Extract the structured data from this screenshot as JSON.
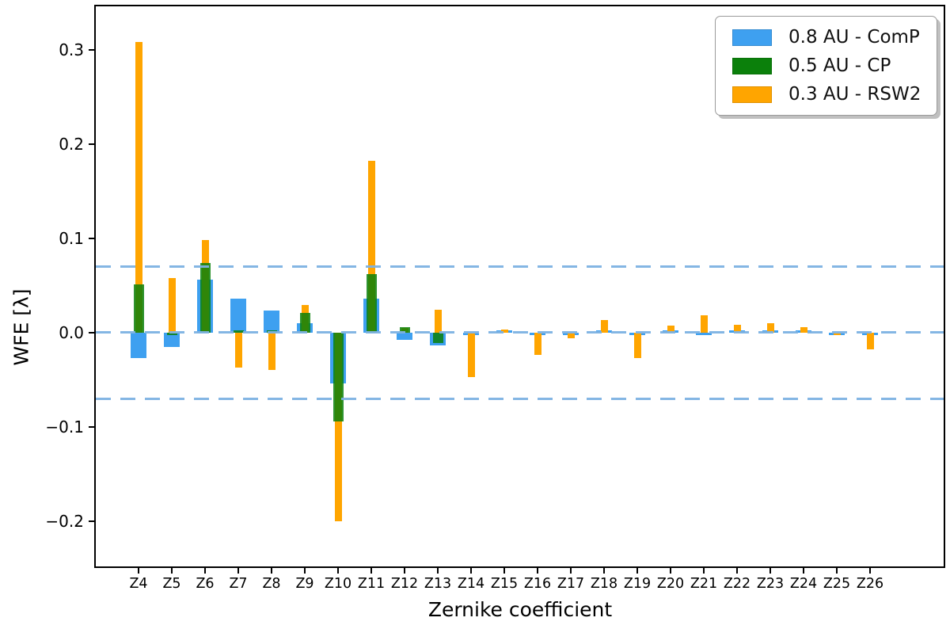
{
  "chart_data": {
    "type": "bar",
    "title": "",
    "xlabel": "Zernike coefficient",
    "ylabel": "WFE [λ]",
    "grid": false,
    "legend_position": "upper right",
    "ylim": [
      -0.248,
      0.346
    ],
    "yticks": [
      {
        "label": "0.3",
        "value": 0.3
      },
      {
        "label": "0.2",
        "value": 0.2
      },
      {
        "label": "0.1",
        "value": 0.1
      },
      {
        "label": "0.0",
        "value": 0.0
      },
      {
        "label": "−0.1",
        "value": -0.1
      },
      {
        "label": "−0.2",
        "value": -0.2
      }
    ],
    "hlines": {
      "values": [
        0.07,
        0.0,
        -0.07
      ],
      "style": "dashed",
      "color": "#7eb2e2"
    },
    "categories": [
      "Z4",
      "Z5",
      "Z6",
      "Z7",
      "Z8",
      "Z9",
      "Z10",
      "Z11",
      "Z12",
      "Z13",
      "Z14",
      "Z15",
      "Z16",
      "Z17",
      "Z18",
      "Z19",
      "Z20",
      "Z21",
      "Z22",
      "Z23",
      "Z24",
      "Z25",
      "Z26"
    ],
    "series": [
      {
        "name": "0.8 AU - ComP",
        "color": "#3ea0f0",
        "values": [
          -0.027,
          -0.015,
          0.056,
          0.036,
          0.023,
          0.01,
          -0.054,
          0.036,
          -0.008,
          -0.014,
          -0.001,
          0.001,
          -0.001,
          -0.002,
          0.001,
          -0.001,
          0.001,
          -0.001,
          0.001,
          0.001,
          0.001,
          -0.001,
          -0.001
        ]
      },
      {
        "name": "0.5 AU - CP",
        "color": "#0b800b",
        "values": [
          0.051,
          -0.003,
          0.074,
          0.002,
          0.002,
          0.021,
          -0.094,
          0.062,
          0.006,
          -0.011,
          0,
          0,
          0,
          0,
          0,
          0,
          0,
          0,
          0,
          0,
          0,
          0,
          0
        ]
      },
      {
        "name": "0.3 AU - RSW2",
        "color": "#ffa500",
        "values": [
          0.308,
          0.058,
          0.098,
          -0.037,
          -0.04,
          0.029,
          -0.2,
          0.182,
          0.005,
          0.024,
          -0.047,
          0.003,
          -0.024,
          -0.006,
          0.013,
          -0.027,
          0.007,
          0.018,
          0.008,
          0.01,
          0.006,
          -0.003,
          -0.018
        ]
      }
    ]
  }
}
